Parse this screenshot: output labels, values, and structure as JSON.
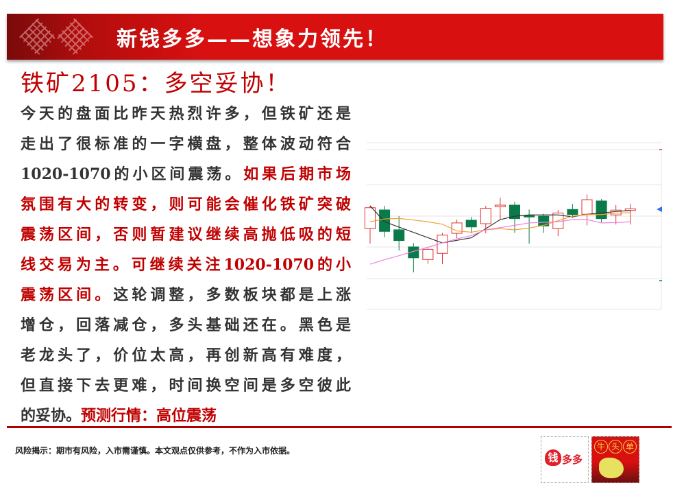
{
  "header": {
    "title": "新钱多多——想象力领先！"
  },
  "article": {
    "heading": "铁矿2105：多空妥协！",
    "lines": [
      [
        {
          "t": "今天的盘面比昨天热烈许多，但铁矿还是",
          "red": false
        }
      ],
      [
        {
          "t": "走出了很标准的一字横盘，整体波动符合",
          "red": false
        }
      ],
      [
        {
          "t": "1020-1070的小区间震荡。",
          "red": false
        },
        {
          "t": "如果后期市场",
          "red": true
        }
      ],
      [
        {
          "t": "氛围有大的转变，则可能会催化铁矿突破",
          "red": true
        }
      ],
      [
        {
          "t": "震荡区间，否则暂建议继续高抛低吸的短",
          "red": true
        }
      ],
      [
        {
          "t": "线交易为主。可继续关注1020-1070的小",
          "red": true
        }
      ],
      [
        {
          "t": "震荡区间。",
          "red": true
        },
        {
          "t": "这轮调整，多数板块都是上涨",
          "red": false
        }
      ],
      [
        {
          "t": "增仓，回落减仓，多头基础还在。黑色是",
          "red": false
        }
      ],
      [
        {
          "t": "老龙头了，价位太高，再创新高有难度，",
          "red": false
        }
      ],
      [
        {
          "t": "但直接下去更难，时间换空间是多空彼此",
          "red": false
        }
      ],
      [
        {
          "t": "的妥协。",
          "red": false
        },
        {
          "t": "预测行情：高位震荡",
          "red": true
        }
      ]
    ]
  },
  "footer": {
    "disclaimer": "风险揭示：期市有风险，入市需谨慎。本文观点仅供参考，不作为入市依据。"
  },
  "logos": {
    "left": "钱多多",
    "right": "牛头单"
  },
  "colors": {
    "brand_red": "#d81010",
    "up": "#e03030",
    "down": "#0a7a4a",
    "ma1": "#333333",
    "ma2": "#f0a030",
    "ma3": "#f080e0"
  },
  "chart_data": {
    "type": "candlestick",
    "note_units": "relative (no axis labels shown)",
    "ylim": [
      0,
      100
    ],
    "grid": true,
    "ohlc": [
      [
        50.3,
        64.6,
        41.0,
        63.4
      ],
      [
        62.0,
        64.6,
        45.0,
        48.6
      ],
      [
        49.6,
        58.1,
        36.7,
        42.9
      ],
      [
        38.9,
        41.3,
        23.1,
        32.1
      ],
      [
        31.0,
        38.1,
        28.4,
        37.4
      ],
      [
        34.9,
        47.7,
        28.1,
        46.3
      ],
      [
        47.4,
        56.0,
        44.3,
        53.9
      ],
      [
        55.6,
        57.7,
        47.4,
        51.4
      ],
      [
        53.4,
        64.6,
        47.4,
        63.0
      ],
      [
        64.0,
        69.6,
        56.0,
        65.0
      ],
      [
        65.0,
        67.1,
        47.7,
        56.6
      ],
      [
        58.4,
        62.3,
        40.9,
        57.6
      ],
      [
        58.1,
        59.6,
        47.7,
        52.0
      ],
      [
        50.3,
        62.0,
        45.6,
        60.1
      ],
      [
        62.3,
        65.7,
        57.1,
        59.1
      ],
      [
        59.3,
        71.7,
        52.4,
        68.4
      ],
      [
        67.6,
        68.9,
        54.3,
        56.6
      ],
      [
        58.9,
        65.0,
        52.9,
        61.9
      ],
      [
        61.7,
        65.7,
        52.9,
        62.7
      ]
    ],
    "series": [
      {
        "values": [
          64.6,
          54.6,
          51.3,
          48.0,
          44.7,
          41.4,
          43.0,
          44.6,
          50.3,
          56.0,
          58.1,
          58.9,
          58.9,
          58.9,
          57.7,
          59.3,
          60.1,
          61.0,
          61.7
        ]
      },
      {
        "values": [
          54.6,
          56.4,
          56.7,
          55.7,
          54.6,
          53.1,
          48.9,
          48.1,
          49.6,
          50.3,
          49.6,
          50.7,
          52.4,
          55.3,
          58.1,
          59.1,
          59.1,
          60.0,
          60.3
        ]
      },
      {
        "values": [
          28.1,
          30.9,
          33.4,
          36.1,
          38.7,
          41.4,
          43.9,
          46.0,
          49.6,
          51.0,
          52.4,
          53.9,
          54.3,
          54.6,
          56.0,
          56.0,
          53.9,
          54.1,
          54.6
        ]
      }
    ]
  }
}
